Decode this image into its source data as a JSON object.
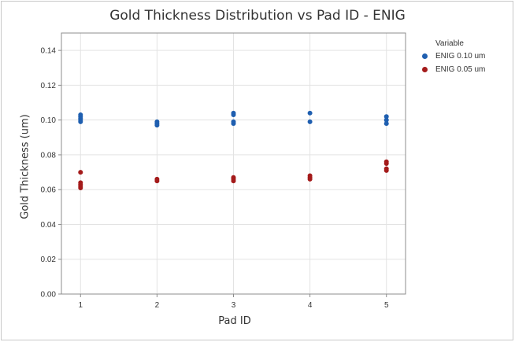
{
  "chart_data": {
    "type": "scatter",
    "title": "Gold Thickness Distribution vs Pad ID - ENIG",
    "xlabel": "Pad ID",
    "ylabel": "Gold Thickness (um)",
    "x_ticks": [
      "1",
      "2",
      "3",
      "4",
      "5"
    ],
    "y_ticks": [
      "0.00",
      "0.02",
      "0.04",
      "0.06",
      "0.08",
      "0.10",
      "0.12",
      "0.14"
    ],
    "xlim": [
      0.75,
      5.25
    ],
    "ylim": [
      0,
      0.15
    ],
    "grid": true,
    "legend_title": "Variable",
    "legend_position": "top-right",
    "series": [
      {
        "name": "ENIG 0.10 um",
        "color": "#1f5fb0",
        "points": [
          {
            "x": 1,
            "y": 0.103
          },
          {
            "x": 1,
            "y": 0.102
          },
          {
            "x": 1,
            "y": 0.101
          },
          {
            "x": 1,
            "y": 0.1
          },
          {
            "x": 1,
            "y": 0.099
          },
          {
            "x": 2,
            "y": 0.099
          },
          {
            "x": 2,
            "y": 0.098
          },
          {
            "x": 2,
            "y": 0.097
          },
          {
            "x": 3,
            "y": 0.104
          },
          {
            "x": 3,
            "y": 0.103
          },
          {
            "x": 3,
            "y": 0.099
          },
          {
            "x": 3,
            "y": 0.098
          },
          {
            "x": 4,
            "y": 0.104
          },
          {
            "x": 4,
            "y": 0.099
          },
          {
            "x": 5,
            "y": 0.102
          },
          {
            "x": 5,
            "y": 0.1
          },
          {
            "x": 5,
            "y": 0.098
          }
        ]
      },
      {
        "name": "ENIG 0.05 um",
        "color": "#a41b1b",
        "points": [
          {
            "x": 1,
            "y": 0.07
          },
          {
            "x": 1,
            "y": 0.064
          },
          {
            "x": 1,
            "y": 0.063
          },
          {
            "x": 1,
            "y": 0.062
          },
          {
            "x": 1,
            "y": 0.061
          },
          {
            "x": 2,
            "y": 0.066
          },
          {
            "x": 2,
            "y": 0.065
          },
          {
            "x": 3,
            "y": 0.067
          },
          {
            "x": 3,
            "y": 0.066
          },
          {
            "x": 3,
            "y": 0.065
          },
          {
            "x": 4,
            "y": 0.068
          },
          {
            "x": 4,
            "y": 0.067
          },
          {
            "x": 4,
            "y": 0.066
          },
          {
            "x": 5,
            "y": 0.076
          },
          {
            "x": 5,
            "y": 0.075
          },
          {
            "x": 5,
            "y": 0.072
          },
          {
            "x": 5,
            "y": 0.071
          }
        ]
      }
    ]
  }
}
